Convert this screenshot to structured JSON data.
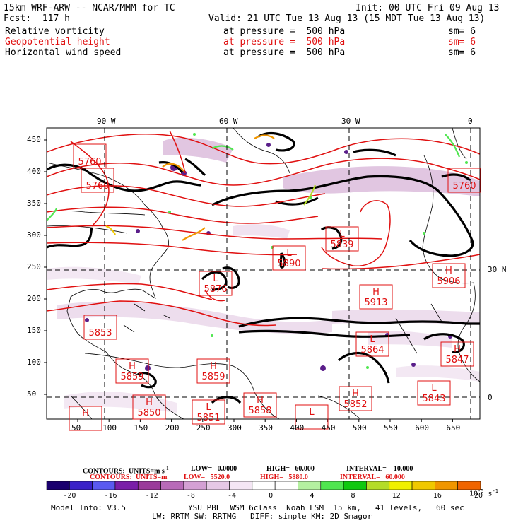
{
  "header": {
    "model": "15km WRF-ARW -- NCAR/MMM for TC",
    "init": "Init: 00 UTC Fri 09 Aug 13",
    "fcst": "Fcst:  117 h",
    "valid": "Valid: 21 UTC Tue 13 Aug 13 (15 MDT Tue 13 Aug 13)",
    "fields": [
      {
        "name": "Relative vorticity",
        "level": "at pressure =  500 hPa",
        "sm": "sm= 6",
        "color": "#000000"
      },
      {
        "name": "Geopotential height",
        "level": "at pressure =  500 hPa",
        "sm": "sm= 6",
        "color": "#e01010"
      },
      {
        "name": "Horizontal wind speed",
        "level": "at pressure =  500 hPa",
        "sm": "sm= 6",
        "color": "#000000"
      }
    ]
  },
  "map": {
    "top_lon_labels": [
      "90 W",
      "60 W",
      "30 W",
      "0"
    ],
    "right_lat_labels": [
      "30 N",
      "0"
    ],
    "y_ticks": [
      "450",
      "400",
      "350",
      "300",
      "250",
      "200",
      "150",
      "100",
      "50"
    ],
    "x_ticks": [
      "50",
      "100",
      "150",
      "200",
      "250",
      "300",
      "350",
      "400",
      "450",
      "500",
      "550",
      "600",
      "650"
    ],
    "centers": [
      {
        "type": "",
        "value": "5760"
      },
      {
        "type": "",
        "value": "5760"
      },
      {
        "type": "",
        "value": "5760"
      },
      {
        "type": "L",
        "value": "5839"
      },
      {
        "type": "L",
        "value": "5890"
      },
      {
        "type": "L",
        "value": "5876"
      },
      {
        "type": "H",
        "value": "5913"
      },
      {
        "type": "H",
        "value": "5906"
      },
      {
        "type": "",
        "value": "5853"
      },
      {
        "type": "L",
        "value": "5864"
      },
      {
        "type": "H",
        "value": "5847"
      },
      {
        "type": "H",
        "value": "5859"
      },
      {
        "type": "H",
        "value": "5859"
      },
      {
        "type": "H",
        "value": "5858"
      },
      {
        "type": "H",
        "value": "5852"
      },
      {
        "type": "L",
        "value": "5843"
      },
      {
        "type": "H",
        "value": ""
      },
      {
        "type": "H",
        "value": "5850"
      },
      {
        "type": "L",
        "value": "5851"
      },
      {
        "type": "L",
        "value": ""
      }
    ]
  },
  "contours": {
    "black": "CONTOURS:  UNITS=m s",
    "black_low": "LOW=   0.0000",
    "black_high": "HIGH=   60.000",
    "black_interval": "INTERVAL=    10.000",
    "red": "CONTOURS:  UNITS=m",
    "red_low": "LOW=   5520.0",
    "red_high": "HIGH=   5880.0",
    "red_interval": "INTERVAL=   60.000"
  },
  "colorbar": {
    "labels": [
      "-20",
      "-16",
      "-12",
      "-8",
      "-4",
      "0",
      "4",
      "8",
      "12",
      "16",
      "20"
    ],
    "colors": [
      "#1a006e",
      "#3a22c8",
      "#5a5af0",
      "#7a1ea8",
      "#9a3a9a",
      "#b86ab8",
      "#d4a0d4",
      "#e6c8e6",
      "#f4e6f4",
      "#ffffff",
      "#ffffff",
      "#b4f0a0",
      "#50e650",
      "#10c810",
      "#b4dc28",
      "#f0f000",
      "#f0c800",
      "#f09600",
      "#f06400"
    ],
    "unit": "10",
    "unit_exp": "-5",
    "unit_s": "s",
    "unit_s_exp": "-1"
  },
  "footer": {
    "model_info": "Model Info: V3.5",
    "line1": "YSU PBL  WSM 6class  Noah LSM  15 km,   41 levels,   60 sec",
    "line2": "LW: RRTM SW: RRTMG   DIFF: simple KM: 2D Smagor"
  }
}
